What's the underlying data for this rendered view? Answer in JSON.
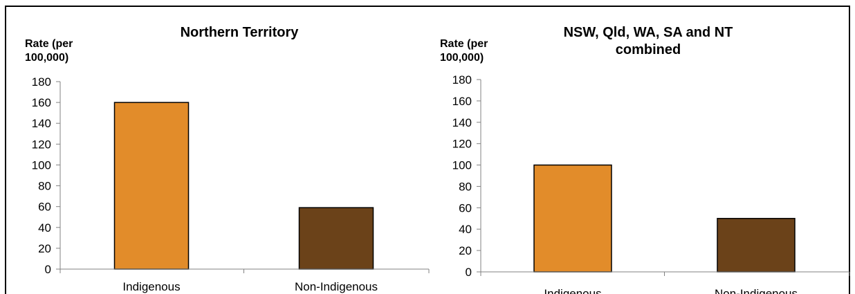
{
  "chart_data": [
    {
      "type": "bar",
      "title": "Northern Territory",
      "ylabel_lines": [
        "Rate (per",
        "100,000)"
      ],
      "xlabel": "",
      "categories": [
        "Indigenous",
        "Non-Indigenous"
      ],
      "values": [
        160,
        59
      ],
      "ylim": [
        0,
        180
      ],
      "yticks": [
        0,
        20,
        40,
        60,
        80,
        100,
        120,
        140,
        160,
        180
      ],
      "grid": false,
      "legend": "none"
    },
    {
      "type": "bar",
      "title_lines": [
        "NSW, Qld, WA, SA and NT",
        "combined"
      ],
      "ylabel_lines": [
        "Rate (per",
        "100,000)"
      ],
      "xlabel": "",
      "categories": [
        "Indigenous",
        "Non-Indigenous"
      ],
      "values": [
        100,
        50
      ],
      "ylim": [
        0,
        180
      ],
      "yticks": [
        0,
        20,
        40,
        60,
        80,
        100,
        120,
        140,
        160,
        180
      ],
      "grid": false,
      "legend": "none"
    }
  ],
  "colors": {
    "indigenous": "#E28C2A",
    "non_indigenous": "#6B4219",
    "bar_outline": "#000000",
    "axis": "#808080"
  }
}
